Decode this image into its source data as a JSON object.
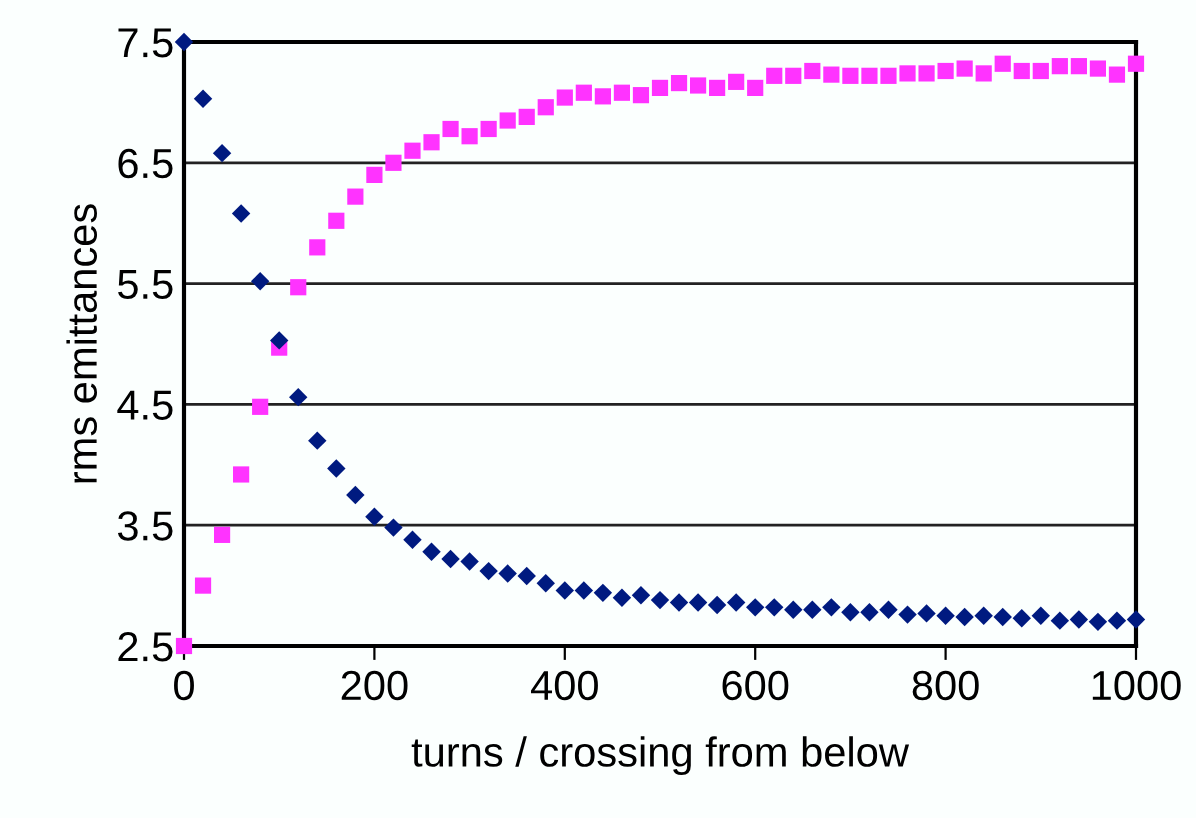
{
  "chart_data": {
    "type": "scatter",
    "xlabel": "turns / crossing from below",
    "ylabel": "rms emittances",
    "x": [
      0,
      20,
      40,
      60,
      80,
      100,
      120,
      140,
      160,
      180,
      200,
      220,
      240,
      260,
      280,
      300,
      320,
      340,
      360,
      380,
      400,
      420,
      440,
      460,
      480,
      500,
      520,
      540,
      560,
      580,
      600,
      620,
      640,
      660,
      680,
      700,
      720,
      740,
      760,
      780,
      800,
      820,
      840,
      860,
      880,
      900,
      920,
      940,
      960,
      980,
      1000
    ],
    "series": [
      {
        "color": "#001a80",
        "marker": "diamond",
        "values": [
          7.5,
          7.03,
          6.58,
          6.08,
          5.52,
          5.03,
          4.56,
          4.2,
          3.97,
          3.75,
          3.57,
          3.48,
          3.38,
          3.28,
          3.22,
          3.2,
          3.12,
          3.1,
          3.08,
          3.02,
          2.96,
          2.96,
          2.94,
          2.9,
          2.92,
          2.88,
          2.86,
          2.86,
          2.84,
          2.86,
          2.82,
          2.82,
          2.8,
          2.8,
          2.82,
          2.78,
          2.78,
          2.8,
          2.76,
          2.77,
          2.75,
          2.74,
          2.75,
          2.74,
          2.73,
          2.75,
          2.71,
          2.72,
          2.7,
          2.71,
          2.72
        ]
      },
      {
        "color": "#ff33ff",
        "marker": "square",
        "values": [
          2.5,
          3.0,
          3.42,
          3.92,
          4.48,
          4.97,
          5.47,
          5.8,
          6.02,
          6.22,
          6.4,
          6.5,
          6.6,
          6.67,
          6.78,
          6.72,
          6.78,
          6.85,
          6.88,
          6.96,
          7.04,
          7.08,
          7.05,
          7.08,
          7.06,
          7.12,
          7.16,
          7.14,
          7.12,
          7.17,
          7.12,
          7.22,
          7.22,
          7.26,
          7.23,
          7.22,
          7.22,
          7.22,
          7.24,
          7.24,
          7.26,
          7.28,
          7.24,
          7.32,
          7.26,
          7.26,
          7.3,
          7.3,
          7.28,
          7.23,
          7.32
        ]
      }
    ],
    "xlim": [
      0,
      1000
    ],
    "xticks": [
      0,
      200,
      400,
      600,
      800,
      1000
    ],
    "ylim": [
      2.5,
      7.5
    ],
    "yticks": [
      2.5,
      3.5,
      4.5,
      5.5,
      6.5,
      7.5
    ],
    "grid": "y"
  }
}
